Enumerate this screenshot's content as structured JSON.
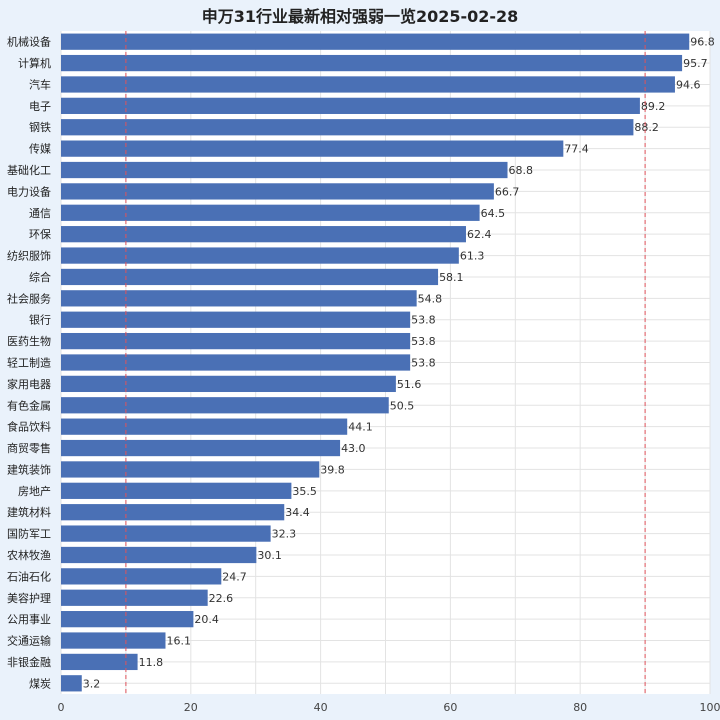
{
  "chart_data": {
    "type": "bar",
    "orientation": "horizontal",
    "title": "申万31行业最新相对强弱一览2025-02-28",
    "xlabel": "",
    "ylabel": "",
    "xlim": [
      0,
      100
    ],
    "xticks": [
      0,
      20,
      40,
      60,
      80,
      100
    ],
    "grid": true,
    "reference_lines": [
      10,
      90
    ],
    "categories": [
      "机械设备",
      "计算机",
      "汽车",
      "电子",
      "钢铁",
      "传媒",
      "基础化工",
      "电力设备",
      "通信",
      "环保",
      "纺织服饰",
      "综合",
      "社会服务",
      "银行",
      "医药生物",
      "轻工制造",
      "家用电器",
      "有色金属",
      "食品饮料",
      "商贸零售",
      "建筑装饰",
      "房地产",
      "建筑材料",
      "国防军工",
      "农林牧渔",
      "石油石化",
      "美容护理",
      "公用事业",
      "交通运输",
      "非银金融",
      "煤炭"
    ],
    "values": [
      96.8,
      95.7,
      94.6,
      89.2,
      88.2,
      77.4,
      68.8,
      66.7,
      64.5,
      62.4,
      61.3,
      58.1,
      54.8,
      53.8,
      53.8,
      53.8,
      51.6,
      50.5,
      44.1,
      43.0,
      39.8,
      35.5,
      34.4,
      32.3,
      30.1,
      24.7,
      22.6,
      20.4,
      16.1,
      11.8,
      3.2
    ],
    "value_labels": [
      "96.8",
      "95.7",
      "94.6",
      "89.2",
      "88.2",
      "77.4",
      "68.8",
      "66.7",
      "64.5",
      "62.4",
      "61.3",
      "58.1",
      "54.8",
      "53.8",
      "53.8",
      "53.8",
      "51.6",
      "50.5",
      "44.1",
      "43.0",
      "39.8",
      "35.5",
      "34.4",
      "32.3",
      "30.1",
      "24.7",
      "22.6",
      "20.4",
      "16.1",
      "11.8",
      "3.2"
    ]
  },
  "colors": {
    "background": "#eaf2fb",
    "plot_background": "#ffffff",
    "bar": "#4a70b5",
    "grid": "#e3e3e3",
    "reference_line": "#e0525a"
  }
}
